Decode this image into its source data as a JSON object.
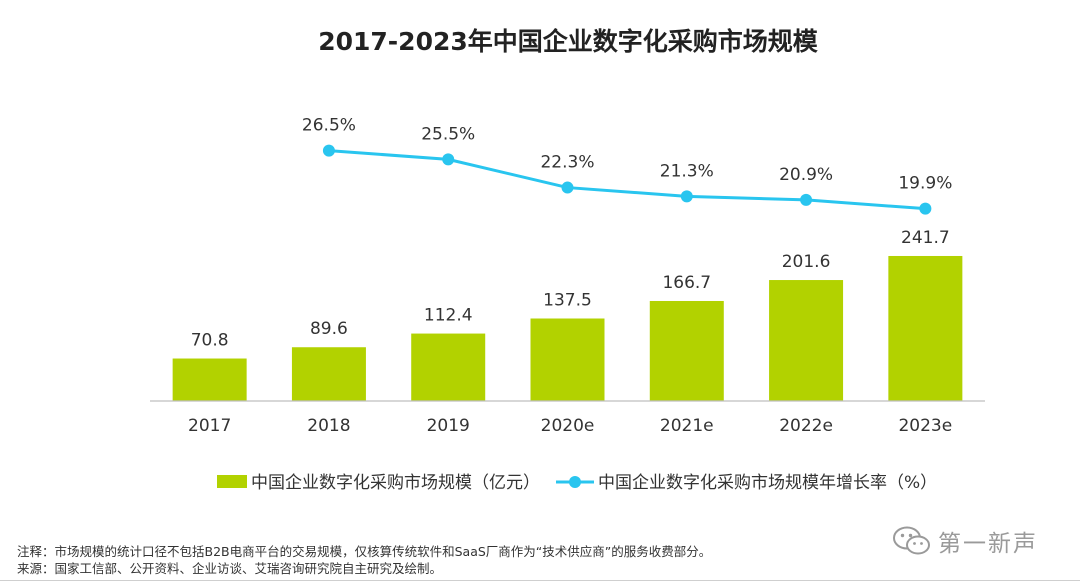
{
  "chart_data": {
    "type": "bar",
    "title": "2017-2023年中国企业数字化采购市场规模",
    "categories": [
      "2017",
      "2018",
      "2019",
      "2020e",
      "2021e",
      "2022e",
      "2023e"
    ],
    "series": [
      {
        "name": "中国企业数字化采购市场规模（亿元）",
        "type": "bar",
        "color": "#b2d200",
        "values": [
          70.8,
          89.6,
          112.4,
          137.5,
          166.7,
          201.6,
          241.7
        ],
        "labels": [
          "70.8",
          "89.6",
          "112.4",
          "137.5",
          "166.7",
          "201.6",
          "241.7"
        ]
      },
      {
        "name": "中国企业数字化采购市场规模年增长率（%）",
        "type": "line",
        "color": "#29c5ef",
        "values": [
          null,
          26.5,
          25.5,
          22.3,
          21.3,
          20.9,
          19.9
        ],
        "labels": [
          "",
          "26.5%",
          "25.5%",
          "22.3%",
          "21.3%",
          "20.9%",
          "19.9%"
        ]
      }
    ],
    "legend_position": "bottom",
    "grid": false
  },
  "notes": {
    "note": "注释：市场规模的统计口径不包括B2B电商平台的交易规模，仅核算传统软件和SaaS厂商作为“技术供应商”的服务收费部分。",
    "source": "来源：国家工信部、公开资料、企业访谈、艾瑞咨询研究院自主研究及绘制。"
  },
  "watermark": {
    "text": "第一新声",
    "icon": "wechat-icon"
  }
}
